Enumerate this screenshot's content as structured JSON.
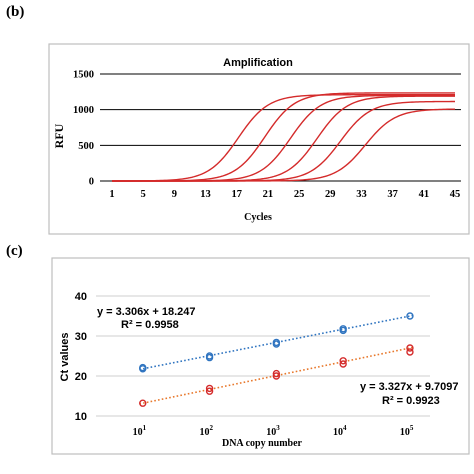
{
  "labels": {
    "panel_b": "(b)",
    "panel_c": "(c)"
  },
  "chart_data": [
    {
      "type": "line",
      "title": "Amplification",
      "xlabel": "Cycles",
      "ylabel": "RFU",
      "xlim": [
        1,
        45
      ],
      "ylim": [
        0,
        1500
      ],
      "x_ticks": [
        "1",
        "5",
        "9",
        "13",
        "17",
        "21",
        "25",
        "29",
        "33",
        "37",
        "41",
        "45"
      ],
      "y_ticks": [
        "0",
        "500",
        "1000",
        "1500"
      ],
      "grid": "horizontal",
      "series_color": "#d42b2b",
      "series": [
        {
          "values": {
            "midpoint_cycle": 17.2,
            "plateau_rfu": 1210,
            "steepness": 0.52
          }
        },
        {
          "values": {
            "midpoint_cycle": 20.6,
            "plateau_rfu": 1235,
            "steepness": 0.52
          }
        },
        {
          "values": {
            "midpoint_cycle": 23.9,
            "plateau_rfu": 1200,
            "steepness": 0.52
          }
        },
        {
          "values": {
            "midpoint_cycle": 27.3,
            "plateau_rfu": 1190,
            "steepness": 0.52
          }
        },
        {
          "values": {
            "midpoint_cycle": 30.3,
            "plateau_rfu": 1115,
            "steepness": 0.52
          }
        },
        {
          "values": {
            "midpoint_cycle": 33.5,
            "plateau_rfu": 1010,
            "steepness": 0.52
          }
        }
      ]
    },
    {
      "type": "scatter",
      "xlabel": "DNA copy number",
      "ylabel": "Ct values",
      "xscale": "log",
      "xlim": [
        0.5,
        5.5
      ],
      "ylim": [
        10,
        40
      ],
      "x_ticks": [
        {
          "base": "10",
          "exp": "1"
        },
        {
          "base": "10",
          "exp": "2"
        },
        {
          "base": "10",
          "exp": "3"
        },
        {
          "base": "10",
          "exp": "4"
        },
        {
          "base": "10",
          "exp": "5"
        }
      ],
      "y_ticks": [
        "10",
        "20",
        "30",
        "40"
      ],
      "grid": "horizontal",
      "series": [
        {
          "color": "#2f74c0",
          "points": [
            [
              1.2,
              21.8
            ],
            [
              1.2,
              22.1
            ],
            [
              2.2,
              24.6
            ],
            [
              2.2,
              25.0
            ],
            [
              3.2,
              28.0
            ],
            [
              3.2,
              28.4
            ],
            [
              4.2,
              31.4
            ],
            [
              4.2,
              31.8
            ],
            [
              5.2,
              35.0
            ]
          ],
          "trend": {
            "slope": 3.306,
            "intercept": 18.247
          },
          "equation": "y = 3.306x + 18.247",
          "r2": "R² = 0.9958"
        },
        {
          "color": "#e8782c",
          "points": [
            [
              1.2,
              13.2
            ],
            [
              2.2,
              16.2
            ],
            [
              2.2,
              16.9
            ],
            [
              3.2,
              20.0
            ],
            [
              3.2,
              20.6
            ],
            [
              4.2,
              23.0
            ],
            [
              4.2,
              23.8
            ],
            [
              5.2,
              26.0
            ],
            [
              5.2,
              27.0
            ]
          ],
          "trend": {
            "slope": 3.327,
            "intercept": 9.7097
          },
          "equation": "y = 3.327x + 9.7097",
          "r2": "R² = 0.9923"
        }
      ],
      "point_color": "#d42b2b"
    }
  ]
}
